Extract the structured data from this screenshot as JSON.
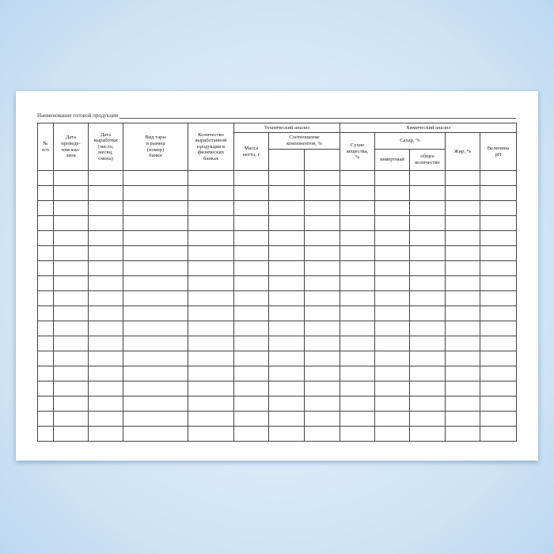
{
  "header": {
    "title": "Наименование готовой продукции"
  },
  "table": {
    "head": {
      "num": "№\nп/п",
      "analysis_date": "Дата\nпроведе-\nния ана-\nлиза",
      "production_date": "Дата\nвыработки\n(число,\nмесяц,\nсмена)",
      "container": "Вид тары\nи размер\n(номер)\nбанки",
      "quantity": "Количество\nвыработанной\nпродукции в\nфизических\nбанках",
      "technical": "Технический анализ",
      "mass": "Масса\nнетто, г",
      "ratio": "Соотношение\nкомпонентов, %",
      "chemical": "Химический анализ",
      "dry": "Сухие\nвещества,\n%",
      "sugar": "Сахар, %",
      "invert": "инвертный",
      "total": "общее\nколичество",
      "fat": "Жир, %",
      "ph": "Величина\npH"
    }
  }
}
